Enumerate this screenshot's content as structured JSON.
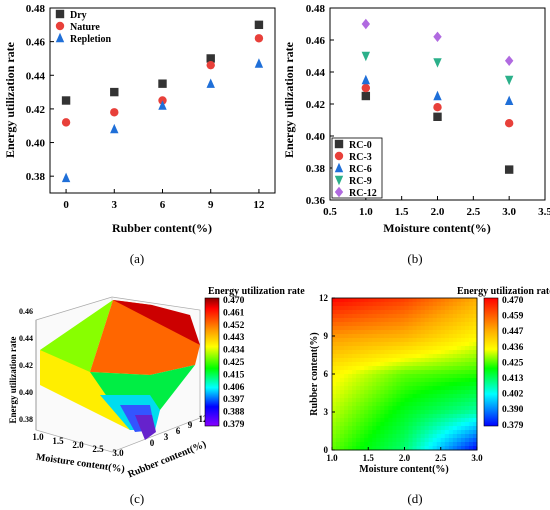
{
  "chart_data": [
    {
      "panel": "(a)",
      "type": "scatter",
      "xlabel": "Rubber content(%)",
      "ylabel": "Energy utilization rate",
      "xlim": [
        -1,
        13
      ],
      "ylim": [
        0.37,
        0.48
      ],
      "xticks": [
        "0",
        "3",
        "6",
        "9",
        "12"
      ],
      "yticks": [
        "0.38",
        "0.40",
        "0.42",
        "0.44",
        "0.46",
        "0.48"
      ],
      "legend": "top-left",
      "x": [
        0,
        3,
        6,
        9,
        12
      ],
      "series": [
        {
          "name": "Dry",
          "marker": "square",
          "color": "#333333",
          "values": [
            0.425,
            0.43,
            0.435,
            0.45,
            0.47
          ]
        },
        {
          "name": "Nature",
          "marker": "circle",
          "color": "#e8403a",
          "values": [
            0.412,
            0.418,
            0.425,
            0.446,
            0.462
          ]
        },
        {
          "name": "Repletion",
          "marker": "triangle",
          "color": "#1f6fd8",
          "values": [
            0.379,
            0.408,
            0.422,
            0.435,
            0.447
          ]
        }
      ]
    },
    {
      "panel": "(b)",
      "type": "scatter",
      "xlabel": "Moisture content(%)",
      "ylabel": "Energy utilization rate",
      "xlim": [
        0.5,
        3.5
      ],
      "ylim": [
        0.36,
        0.48
      ],
      "xticks": [
        "0.5",
        "1.0",
        "1.5",
        "2.0",
        "2.5",
        "3.0",
        "3.5"
      ],
      "yticks": [
        "0.36",
        "0.38",
        "0.40",
        "0.42",
        "0.44",
        "0.46",
        "0.48"
      ],
      "legend": "bottom-left",
      "x": [
        1.0,
        2.0,
        3.0
      ],
      "series": [
        {
          "name": "RC-0",
          "marker": "square",
          "color": "#333333",
          "values": [
            0.425,
            0.412,
            0.379
          ]
        },
        {
          "name": "RC-3",
          "marker": "circle",
          "color": "#e8403a",
          "values": [
            0.43,
            0.418,
            0.408
          ]
        },
        {
          "name": "RC-6",
          "marker": "triangle",
          "color": "#1f6fd8",
          "values": [
            0.435,
            0.425,
            0.422
          ]
        },
        {
          "name": "RC-9",
          "marker": "triangle-down",
          "color": "#2bb08a",
          "values": [
            0.45,
            0.446,
            0.435
          ]
        },
        {
          "name": "RC-12",
          "marker": "diamond",
          "color": "#b06ae0",
          "values": [
            0.47,
            0.462,
            0.447
          ]
        }
      ]
    },
    {
      "panel": "(c)",
      "type": "heatmap",
      "subtype": "3d-surface",
      "xlabel": "Moisture content(%)",
      "ylabel": "Rubber content(%)",
      "zlabel": "Energy utilization rate",
      "colorbar_title": "Energy utilization rate",
      "colorbar_ticks": [
        "0.470",
        "0.461",
        "0.452",
        "0.443",
        "0.434",
        "0.425",
        "0.415",
        "0.406",
        "0.397",
        "0.388",
        "0.379"
      ],
      "xticks": [
        "1.0",
        "1.5",
        "2.0",
        "2.5",
        "3.0"
      ],
      "yticks": [
        "0",
        "3",
        "6",
        "9",
        "12"
      ],
      "zticks": [
        "0.38",
        "0.40",
        "0.42",
        "0.44",
        "0.46"
      ]
    },
    {
      "panel": "(d)",
      "type": "heatmap",
      "subtype": "contour",
      "xlabel": "Moisture content(%)",
      "ylabel": "Rubber content(%)",
      "colorbar_title": "Energy utilization rate",
      "colorbar_ticks": [
        "0.470",
        "0.459",
        "0.447",
        "0.436",
        "0.425",
        "0.413",
        "0.402",
        "0.390",
        "0.379"
      ],
      "xticks": [
        "1.0",
        "1.5",
        "2.0",
        "2.5",
        "3.0"
      ],
      "yticks": [
        "0",
        "3",
        "6",
        "9",
        "12"
      ],
      "x": [
        1.0,
        2.0,
        3.0
      ],
      "y": [
        0,
        3,
        6,
        9,
        12
      ],
      "z": [
        [
          0.425,
          0.412,
          0.379
        ],
        [
          0.43,
          0.418,
          0.408
        ],
        [
          0.435,
          0.425,
          0.422
        ],
        [
          0.45,
          0.446,
          0.435
        ],
        [
          0.47,
          0.462,
          0.447
        ]
      ],
      "zlim": [
        0.379,
        0.47
      ]
    }
  ],
  "panels": {
    "a": "(a)",
    "b": "(b)",
    "c": "(c)",
    "d": "(d)"
  }
}
